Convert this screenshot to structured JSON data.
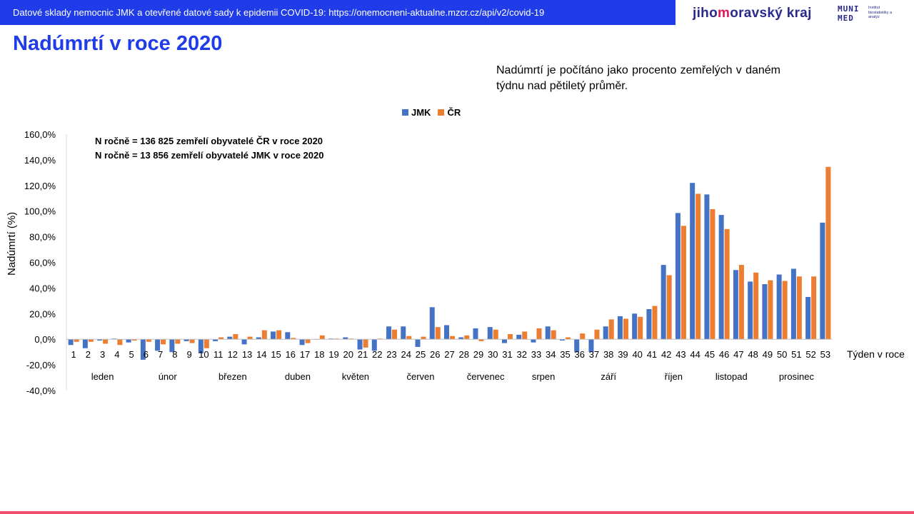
{
  "header": {
    "banner_text": "Datové sklady nemocnic JMK a otevřené datové sady k epidemii COVID-19: https://onemocneni-aktualne.mzcr.cz/api/v2/covid-19",
    "logo_jmk_a": "jiho",
    "logo_jmk_b": "m",
    "logo_jmk_c": "oravský kraj",
    "logo_muni_1": "MUNI",
    "logo_muni_2": "MED",
    "logo_inst": "Institut biostatistiky a analýz"
  },
  "title": "Nadúmrtí v roce 2020",
  "note": "Nadúmrtí je počítáno jako procento zemřelých v daném týdnu nad pětiletý průměr.",
  "colors": {
    "jmk": "#4472c4",
    "cr": "#ed7d31",
    "accent": "#1f3ce8",
    "bottom": "#f0506e"
  },
  "chart_data": {
    "type": "bar",
    "ylabel": "Nadúmrtí (%)",
    "xlabel": "Týden v roce",
    "ylim": [
      -40,
      160
    ],
    "yticks": [
      -40,
      -20,
      0,
      20,
      40,
      60,
      80,
      100,
      120,
      140,
      160
    ],
    "ytick_labels": [
      "-40,0%",
      "-20,0%",
      "0,0%",
      "20,0%",
      "40,0%",
      "60,0%",
      "80,0%",
      "100,0%",
      "120,0%",
      "140,0%",
      "160,0%"
    ],
    "legend_position": "top",
    "annotations": [
      "N ročně = 136 825 zemřelí obyvatelé ČR v roce 2020",
      "N ročně = 13 856 zemřelí obyvatelé JMK v roce 2020"
    ],
    "categories": [
      "1",
      "2",
      "3",
      "4",
      "5",
      "6",
      "7",
      "8",
      "9",
      "10",
      "11",
      "12",
      "13",
      "14",
      "15",
      "16",
      "17",
      "18",
      "19",
      "20",
      "21",
      "22",
      "23",
      "24",
      "25",
      "26",
      "27",
      "28",
      "29",
      "30",
      "31",
      "32",
      "33",
      "34",
      "35",
      "36",
      "37",
      "38",
      "39",
      "40",
      "41",
      "42",
      "43",
      "44",
      "45",
      "46",
      "47",
      "48",
      "49",
      "50",
      "51",
      "52",
      "53"
    ],
    "months": [
      {
        "label": "leden",
        "weeks": [
          1,
          5
        ]
      },
      {
        "label": "únor",
        "weeks": [
          6,
          9
        ]
      },
      {
        "label": "březen",
        "weeks": [
          10,
          14
        ]
      },
      {
        "label": "duben",
        "weeks": [
          15,
          18
        ]
      },
      {
        "label": "květen",
        "weeks": [
          19,
          22
        ]
      },
      {
        "label": "červen",
        "weeks": [
          23,
          27
        ]
      },
      {
        "label": "červenec",
        "weeks": [
          28,
          31
        ]
      },
      {
        "label": "srpen",
        "weeks": [
          32,
          35
        ]
      },
      {
        "label": "září",
        "weeks": [
          36,
          40
        ]
      },
      {
        "label": "říjen",
        "weeks": [
          41,
          44
        ]
      },
      {
        "label": "listopad",
        "weeks": [
          45,
          48
        ]
      },
      {
        "label": "prosinec",
        "weeks": [
          49,
          53
        ]
      }
    ],
    "series": [
      {
        "name": "JMK",
        "values": [
          -4.5,
          -7,
          -1,
          0.5,
          -2.5,
          -16,
          -9,
          -10,
          -1.5,
          -11,
          -1.5,
          2,
          -4,
          1.5,
          6,
          5.5,
          -4.5,
          0,
          0.5,
          1.5,
          -8,
          -9,
          10,
          10,
          -6,
          25,
          11,
          1.5,
          8.5,
          9.5,
          -3,
          3.5,
          -2.5,
          10,
          -1,
          -10,
          -10,
          10,
          18,
          20,
          23.5,
          58,
          98.5,
          122,
          113,
          97,
          54,
          45,
          43,
          50.5,
          55,
          33,
          91
        ]
      },
      {
        "name": "ČR",
        "values": [
          -2,
          -2,
          -3.5,
          -4.5,
          -1,
          -2,
          -4,
          -3.5,
          -3,
          -7,
          1.5,
          4,
          2,
          7,
          7,
          1,
          -3,
          3,
          0.5,
          0.5,
          -6.5,
          0.5,
          7.5,
          2.5,
          2,
          9.5,
          2.5,
          3,
          -1.5,
          7.5,
          4,
          6,
          8.5,
          7,
          1.5,
          4.5,
          7.5,
          15.5,
          16,
          17.5,
          26,
          50,
          88.5,
          113.5,
          101.5,
          86,
          58,
          52,
          46,
          45.5,
          49,
          49,
          134.5
        ]
      }
    ]
  }
}
